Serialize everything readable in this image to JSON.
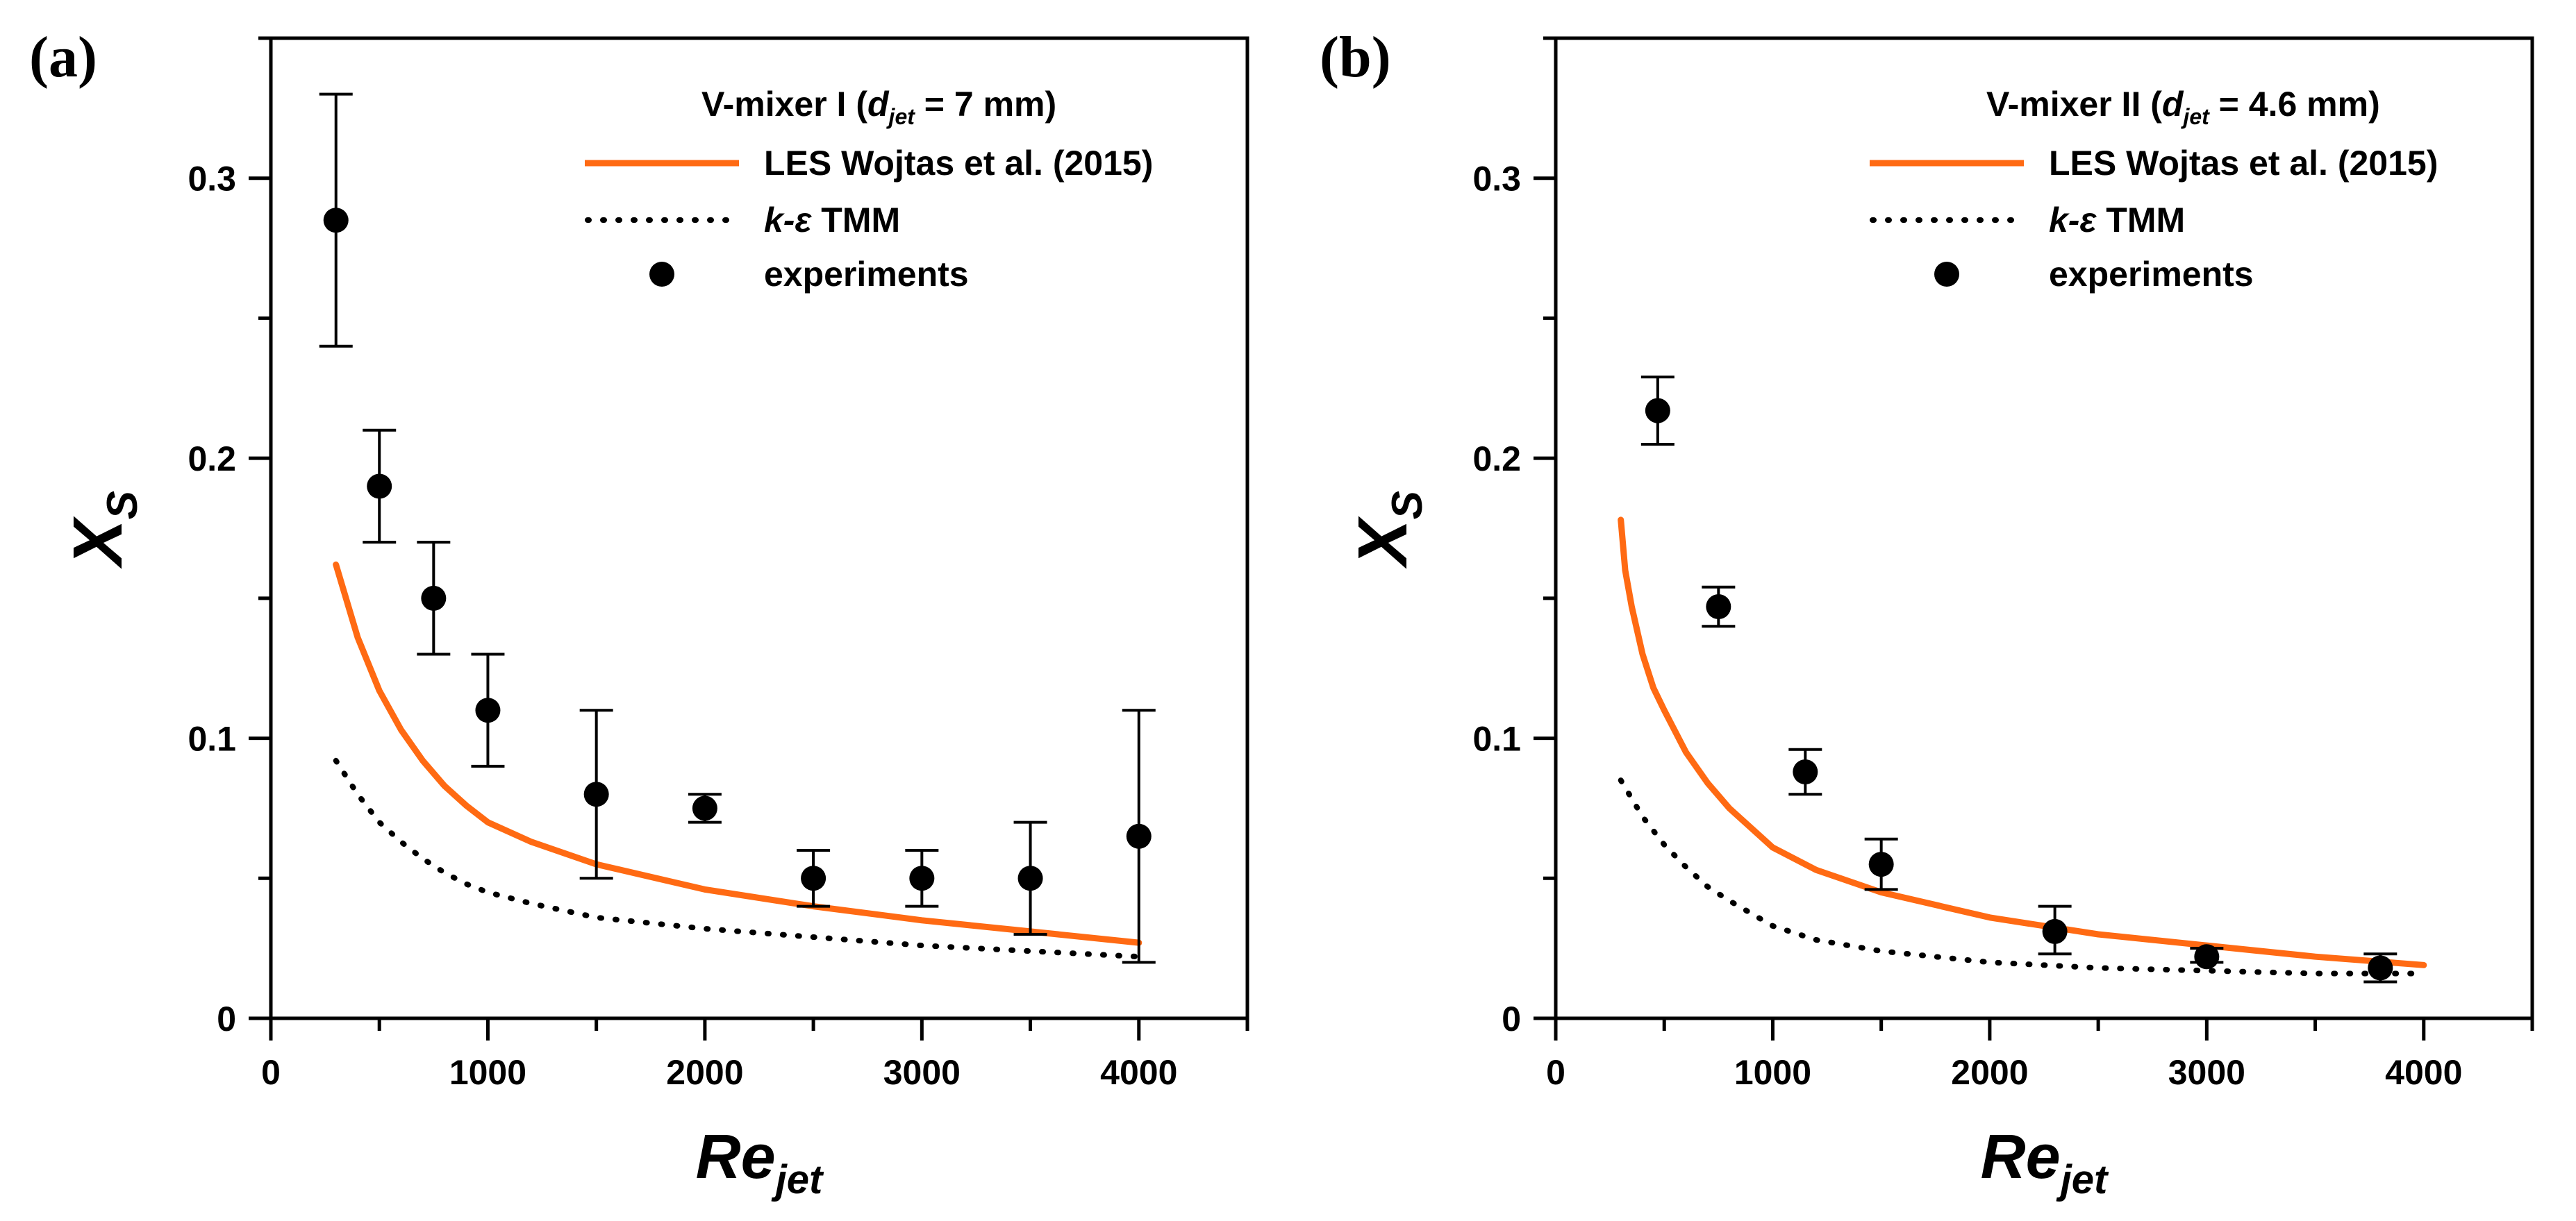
{
  "chart_data": [
    {
      "type": "line",
      "panel_label": "(a)",
      "legend_title": {
        "prefix": "V-mixer I (",
        "var": "d",
        "sub": "jet",
        "suffix": " = 7 mm)"
      },
      "xlabel": {
        "main": "Re",
        "sub": "jet"
      },
      "ylabel": {
        "main": "X",
        "sub": "S"
      },
      "xlim": [
        0,
        4500
      ],
      "ylim": [
        0,
        0.35
      ],
      "x_ticks": [
        0,
        1000,
        2000,
        3000,
        4000
      ],
      "x_tick_labels": [
        "0",
        "1000",
        "2000",
        "3000",
        "4000"
      ],
      "y_ticks": [
        0,
        0.1,
        0.2,
        0.3
      ],
      "y_tick_labels": [
        "0",
        "0.1",
        "0.2",
        "0.3"
      ],
      "legend_position": "top-right",
      "series": [
        {
          "name": "LES Wojtas et al. (2015)",
          "style": "solid",
          "color": "#ff6a13",
          "x": [
            300,
            400,
            500,
            600,
            700,
            800,
            900,
            1000,
            1200,
            1500,
            2000,
            2500,
            3000,
            3500,
            4000
          ],
          "y": [
            0.162,
            0.136,
            0.117,
            0.103,
            0.092,
            0.083,
            0.076,
            0.07,
            0.063,
            0.055,
            0.046,
            0.04,
            0.035,
            0.031,
            0.027
          ]
        },
        {
          "name": "k-ε TMM",
          "name_parts": {
            "italic": "k-ε",
            "rest": " TMM"
          },
          "style": "dotted",
          "color": "#000000",
          "x": [
            300,
            400,
            500,
            600,
            700,
            800,
            900,
            1000,
            1200,
            1500,
            2000,
            2500,
            3000,
            3500,
            4000
          ],
          "y": [
            0.092,
            0.08,
            0.07,
            0.063,
            0.057,
            0.052,
            0.048,
            0.045,
            0.041,
            0.036,
            0.032,
            0.029,
            0.026,
            0.024,
            0.022
          ]
        },
        {
          "name": "experiments",
          "style": "marker",
          "color": "#000000",
          "x": [
            300,
            500,
            750,
            1000,
            1500,
            2000,
            2500,
            3000,
            3500,
            4000
          ],
          "y": [
            0.285,
            0.19,
            0.15,
            0.11,
            0.08,
            0.075,
            0.05,
            0.05,
            0.05,
            0.065
          ],
          "err_low": [
            0.24,
            0.17,
            0.13,
            0.09,
            0.05,
            0.07,
            0.04,
            0.04,
            0.03,
            0.02
          ],
          "err_high": [
            0.33,
            0.21,
            0.17,
            0.13,
            0.11,
            0.08,
            0.06,
            0.06,
            0.07,
            0.11
          ]
        }
      ]
    },
    {
      "type": "line",
      "panel_label": "(b)",
      "legend_title": {
        "prefix": "V-mixer II (",
        "var": "d",
        "sub": "jet",
        "suffix": " = 4.6 mm)"
      },
      "xlabel": {
        "main": "Re",
        "sub": "jet"
      },
      "ylabel": {
        "main": "X",
        "sub": "S"
      },
      "xlim": [
        0,
        4500
      ],
      "ylim": [
        0,
        0.35
      ],
      "x_ticks": [
        0,
        1000,
        2000,
        3000,
        4000
      ],
      "x_tick_labels": [
        "0",
        "1000",
        "2000",
        "3000",
        "4000"
      ],
      "y_ticks": [
        0,
        0.1,
        0.2,
        0.3
      ],
      "y_tick_labels": [
        "0",
        "0.1",
        "0.2",
        "0.3"
      ],
      "legend_position": "top-right",
      "series": [
        {
          "name": "LES Wojtas et al. (2015)",
          "style": "solid",
          "color": "#ff6a13",
          "x": [
            300,
            320,
            350,
            400,
            450,
            500,
            600,
            700,
            800,
            1000,
            1200,
            1500,
            2000,
            2500,
            3000,
            3500,
            4000
          ],
          "y": [
            0.178,
            0.16,
            0.147,
            0.13,
            0.118,
            0.11,
            0.095,
            0.084,
            0.075,
            0.061,
            0.053,
            0.045,
            0.036,
            0.03,
            0.026,
            0.022,
            0.019
          ]
        },
        {
          "name": "k-ε TMM",
          "name_parts": {
            "italic": "k-ε",
            "rest": " TMM"
          },
          "style": "dotted",
          "color": "#000000",
          "x": [
            300,
            400,
            500,
            600,
            700,
            800,
            1000,
            1200,
            1500,
            2000,
            2500,
            3000,
            3500,
            4000
          ],
          "y": [
            0.085,
            0.072,
            0.062,
            0.054,
            0.047,
            0.042,
            0.033,
            0.028,
            0.024,
            0.02,
            0.018,
            0.017,
            0.016,
            0.016
          ]
        },
        {
          "name": "experiments",
          "style": "marker",
          "color": "#000000",
          "x": [
            470,
            750,
            1150,
            1500,
            2300,
            3000,
            3800
          ],
          "y": [
            0.217,
            0.147,
            0.088,
            0.055,
            0.031,
            0.022,
            0.018
          ],
          "err_low": [
            0.205,
            0.14,
            0.08,
            0.046,
            0.023,
            0.02,
            0.013
          ],
          "err_high": [
            0.229,
            0.154,
            0.096,
            0.064,
            0.04,
            0.025,
            0.023
          ]
        }
      ]
    }
  ]
}
